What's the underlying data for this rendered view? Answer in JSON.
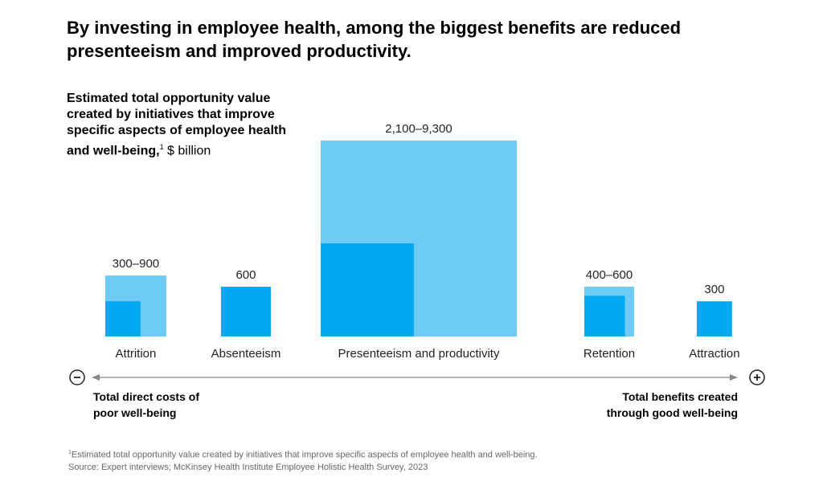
{
  "title": "By investing in employee health, among the biggest benefits are reduced presenteeism and improved productivity.",
  "subtitle_bold": "Estimated total opportunity value created by initiatives that improve specific aspects of employee health and well-being,",
  "subtitle_sup": "1",
  "subtitle_unit": " $ billion",
  "axis": {
    "left_label": "Total direct costs of poor well-being",
    "right_label": "Total benefits created through good well-being",
    "left_icon": "minus-circle-icon",
    "right_icon": "plus-circle-icon"
  },
  "colors": {
    "high": "#6ECBF5",
    "low": "#00A9F0"
  },
  "chart_data": {
    "type": "nested-square",
    "unit": "$ billion",
    "categories": [
      "Attrition",
      "Absenteeism",
      "Presenteeism and productivity",
      "Retention",
      "Attraction"
    ],
    "low": [
      300,
      600,
      2100,
      400,
      300
    ],
    "high": [
      900,
      600,
      9300,
      600,
      300
    ],
    "labels": [
      "300–900",
      "600",
      "2,100–9,300",
      "400–600",
      "300"
    ]
  },
  "footnote": "Estimated total opportunity value created by initiatives that improve specific aspects of employee health and well-being.",
  "footnote_marker": "1",
  "source": "Source: Expert interviews; McKinsey Health Institute Employee Holistic Health Survey, 2023"
}
